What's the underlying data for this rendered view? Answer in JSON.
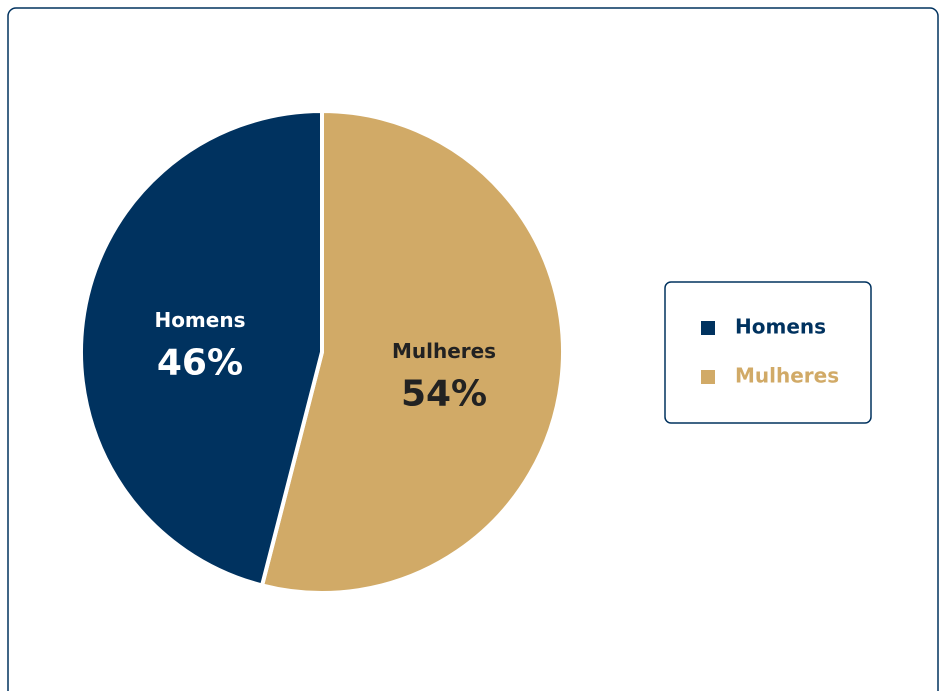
{
  "chart_data": {
    "type": "pie",
    "categories": [
      "Homens",
      "Mulheres"
    ],
    "values": [
      46,
      54
    ],
    "value_labels": [
      "46%",
      "54%"
    ],
    "colors": [
      "#00325f",
      "#d1aa67"
    ],
    "legend": "right"
  }
}
